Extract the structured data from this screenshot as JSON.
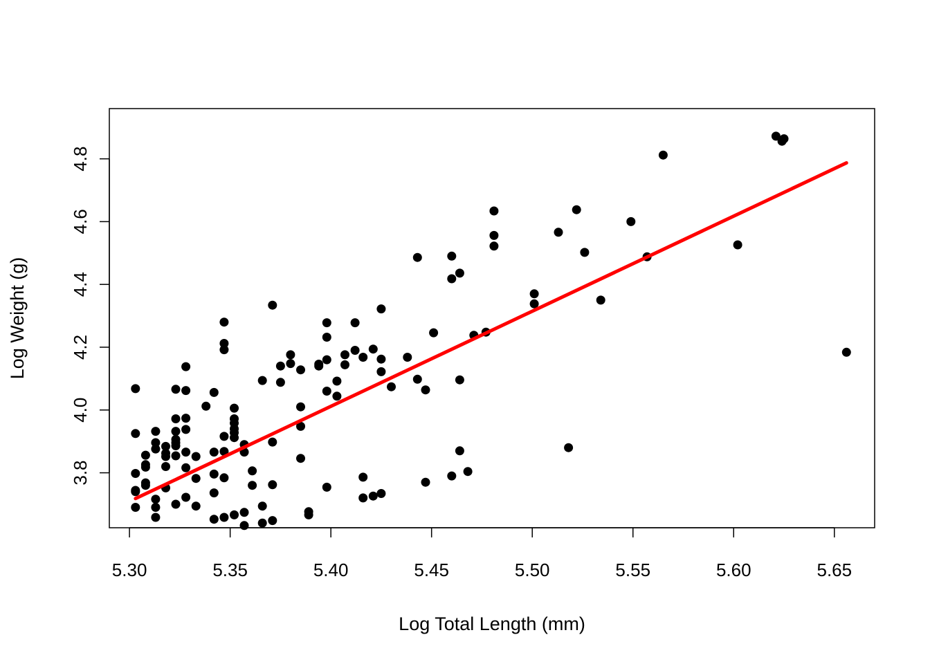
{
  "chart_data": {
    "type": "scatter",
    "title": "",
    "xlabel": "Log Total Length (mm)",
    "ylabel": "Log Weight (g)",
    "xlim": [
      5.29,
      5.67
    ],
    "ylim": [
      3.625,
      4.96
    ],
    "x_ticks": [
      "5.30",
      "5.35",
      "5.40",
      "5.45",
      "5.50",
      "5.55",
      "5.60",
      "5.65"
    ],
    "y_ticks": [
      "3.8",
      "4.0",
      "4.2",
      "4.4",
      "4.6",
      "4.8"
    ],
    "grid": false,
    "legend": "none",
    "point_color": "#000000",
    "line_color": "#ff0000",
    "points": [
      [
        5.303,
        4.068
      ],
      [
        5.303,
        3.925
      ],
      [
        5.303,
        3.798
      ],
      [
        5.303,
        3.744
      ],
      [
        5.303,
        3.74
      ],
      [
        5.303,
        3.69
      ],
      [
        5.308,
        3.856
      ],
      [
        5.308,
        3.826
      ],
      [
        5.308,
        3.818
      ],
      [
        5.308,
        3.768
      ],
      [
        5.308,
        3.76
      ],
      [
        5.313,
        3.932
      ],
      [
        5.313,
        3.896
      ],
      [
        5.313,
        3.876
      ],
      [
        5.313,
        3.716
      ],
      [
        5.313,
        3.69
      ],
      [
        5.313,
        3.658
      ],
      [
        5.318,
        3.884
      ],
      [
        5.318,
        3.862
      ],
      [
        5.318,
        3.852
      ],
      [
        5.318,
        3.82
      ],
      [
        5.318,
        3.752
      ],
      [
        5.323,
        4.066
      ],
      [
        5.323,
        3.972
      ],
      [
        5.323,
        3.932
      ],
      [
        5.323,
        3.906
      ],
      [
        5.323,
        3.896
      ],
      [
        5.323,
        3.886
      ],
      [
        5.323,
        3.854
      ],
      [
        5.323,
        3.7
      ],
      [
        5.328,
        4.138
      ],
      [
        5.328,
        4.062
      ],
      [
        5.328,
        3.974
      ],
      [
        5.328,
        3.938
      ],
      [
        5.328,
        3.866
      ],
      [
        5.328,
        3.816
      ],
      [
        5.328,
        3.722
      ],
      [
        5.333,
        3.852
      ],
      [
        5.333,
        3.782
      ],
      [
        5.333,
        3.694
      ],
      [
        5.338,
        4.012
      ],
      [
        5.342,
        4.056
      ],
      [
        5.342,
        3.866
      ],
      [
        5.342,
        3.796
      ],
      [
        5.342,
        3.736
      ],
      [
        5.342,
        3.652
      ],
      [
        5.347,
        4.28
      ],
      [
        5.347,
        4.212
      ],
      [
        5.347,
        4.192
      ],
      [
        5.347,
        3.916
      ],
      [
        5.347,
        3.868
      ],
      [
        5.347,
        3.784
      ],
      [
        5.347,
        3.658
      ],
      [
        5.352,
        4.006
      ],
      [
        5.352,
        3.972
      ],
      [
        5.352,
        3.958
      ],
      [
        5.352,
        3.94
      ],
      [
        5.352,
        3.928
      ],
      [
        5.352,
        3.912
      ],
      [
        5.352,
        3.666
      ],
      [
        5.357,
        3.89
      ],
      [
        5.357,
        3.866
      ],
      [
        5.357,
        3.674
      ],
      [
        5.357,
        3.632
      ],
      [
        5.361,
        3.806
      ],
      [
        5.361,
        3.76
      ],
      [
        5.366,
        4.094
      ],
      [
        5.366,
        3.694
      ],
      [
        5.366,
        3.64
      ],
      [
        5.371,
        4.334
      ],
      [
        5.371,
        3.898
      ],
      [
        5.371,
        3.762
      ],
      [
        5.371,
        3.648
      ],
      [
        5.375,
        4.14
      ],
      [
        5.375,
        4.088
      ],
      [
        5.38,
        4.176
      ],
      [
        5.38,
        4.148
      ],
      [
        5.385,
        4.128
      ],
      [
        5.385,
        4.01
      ],
      [
        5.385,
        3.948
      ],
      [
        5.385,
        3.846
      ],
      [
        5.389,
        3.676
      ],
      [
        5.389,
        3.666
      ],
      [
        5.394,
        4.146
      ],
      [
        5.394,
        4.14
      ],
      [
        5.398,
        4.278
      ],
      [
        5.398,
        4.232
      ],
      [
        5.398,
        4.16
      ],
      [
        5.398,
        4.06
      ],
      [
        5.398,
        3.754
      ],
      [
        5.403,
        4.092
      ],
      [
        5.403,
        4.044
      ],
      [
        5.407,
        4.176
      ],
      [
        5.407,
        4.144
      ],
      [
        5.412,
        4.278
      ],
      [
        5.412,
        4.19
      ],
      [
        5.416,
        4.168
      ],
      [
        5.416,
        3.786
      ],
      [
        5.416,
        3.72
      ],
      [
        5.421,
        4.194
      ],
      [
        5.421,
        3.726
      ],
      [
        5.425,
        4.322
      ],
      [
        5.425,
        4.162
      ],
      [
        5.425,
        4.122
      ],
      [
        5.425,
        3.734
      ],
      [
        5.43,
        4.074
      ],
      [
        5.438,
        4.168
      ],
      [
        5.443,
        4.486
      ],
      [
        5.443,
        4.098
      ],
      [
        5.447,
        4.064
      ],
      [
        5.447,
        3.77
      ],
      [
        5.451,
        4.246
      ],
      [
        5.46,
        4.49
      ],
      [
        5.46,
        4.418
      ],
      [
        5.46,
        3.79
      ],
      [
        5.464,
        4.436
      ],
      [
        5.464,
        4.096
      ],
      [
        5.464,
        3.87
      ],
      [
        5.468,
        3.804
      ],
      [
        5.471,
        4.238
      ],
      [
        5.477,
        4.248
      ],
      [
        5.481,
        4.634
      ],
      [
        5.481,
        4.556
      ],
      [
        5.481,
        4.522
      ],
      [
        5.501,
        4.37
      ],
      [
        5.501,
        4.338
      ],
      [
        5.513,
        4.566
      ],
      [
        5.518,
        3.88
      ],
      [
        5.522,
        4.638
      ],
      [
        5.526,
        4.502
      ],
      [
        5.534,
        4.35
      ],
      [
        5.549,
        4.6
      ],
      [
        5.557,
        4.488
      ],
      [
        5.565,
        4.812
      ],
      [
        5.602,
        4.526
      ],
      [
        5.621,
        4.872
      ],
      [
        5.624,
        4.856
      ],
      [
        5.625,
        4.864
      ],
      [
        5.656,
        4.184
      ]
    ],
    "fit_line": {
      "x": [
        5.303,
        5.656
      ],
      "y": [
        3.718,
        4.787
      ]
    }
  }
}
